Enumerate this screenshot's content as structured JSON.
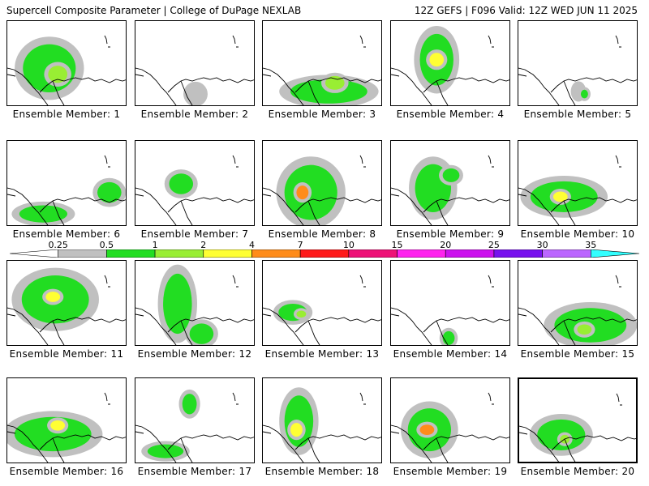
{
  "header": {
    "left": "Supercell Composite Parameter | College of DuPage NEXLAB",
    "right": "12Z GEFS | F096 Valid: 12Z WED JUN 11 2025"
  },
  "members": [
    {
      "label": "Ensemble Member: 1",
      "blobs": [
        [
          0.35,
          0.55,
          0.22,
          0.28,
          2
        ],
        [
          0.42,
          0.62,
          0.08,
          0.1,
          3
        ]
      ]
    },
    {
      "label": "Ensemble Member: 2",
      "blobs": [
        [
          0.5,
          0.85,
          0.07,
          0.1,
          1
        ]
      ]
    },
    {
      "label": "Ensemble Member: 3",
      "blobs": [
        [
          0.55,
          0.82,
          0.32,
          0.14,
          2
        ],
        [
          0.6,
          0.72,
          0.08,
          0.08,
          3
        ]
      ]
    },
    {
      "label": "Ensemble Member: 4",
      "blobs": [
        [
          0.38,
          0.45,
          0.14,
          0.3,
          2
        ],
        [
          0.38,
          0.45,
          0.06,
          0.08,
          4
        ]
      ]
    },
    {
      "label": "Ensemble Member: 5",
      "blobs": [
        [
          0.5,
          0.82,
          0.04,
          0.08,
          1
        ],
        [
          0.55,
          0.85,
          0.03,
          0.05,
          2
        ]
      ]
    },
    {
      "label": "Ensemble Member: 6",
      "blobs": [
        [
          0.3,
          0.85,
          0.2,
          0.1,
          2
        ],
        [
          0.85,
          0.6,
          0.1,
          0.12,
          2
        ]
      ]
    },
    {
      "label": "Ensemble Member: 7",
      "blobs": [
        [
          0.38,
          0.5,
          0.1,
          0.12,
          2
        ]
      ]
    },
    {
      "label": "Ensemble Member: 8",
      "blobs": [
        [
          0.4,
          0.6,
          0.22,
          0.32,
          2
        ],
        [
          0.33,
          0.6,
          0.05,
          0.08,
          5
        ]
      ]
    },
    {
      "label": "Ensemble Member: 9",
      "blobs": [
        [
          0.35,
          0.55,
          0.15,
          0.28,
          2
        ],
        [
          0.5,
          0.4,
          0.07,
          0.08,
          2
        ]
      ]
    },
    {
      "label": "Ensemble Member: 10",
      "blobs": [
        [
          0.38,
          0.65,
          0.28,
          0.18,
          2
        ],
        [
          0.35,
          0.65,
          0.06,
          0.06,
          4
        ]
      ]
    },
    {
      "label": "Ensemble Member: 11",
      "blobs": [
        [
          0.4,
          0.45,
          0.28,
          0.28,
          2
        ],
        [
          0.38,
          0.42,
          0.06,
          0.06,
          4
        ]
      ]
    },
    {
      "label": "Ensemble Member: 12",
      "blobs": [
        [
          0.35,
          0.5,
          0.12,
          0.35,
          2
        ],
        [
          0.55,
          0.85,
          0.1,
          0.12,
          2
        ]
      ]
    },
    {
      "label": "Ensemble Member: 13",
      "blobs": [
        [
          0.25,
          0.6,
          0.12,
          0.1,
          2
        ],
        [
          0.32,
          0.62,
          0.04,
          0.04,
          3
        ]
      ]
    },
    {
      "label": "Ensemble Member: 14",
      "blobs": [
        [
          0.48,
          0.9,
          0.05,
          0.08,
          2
        ]
      ]
    },
    {
      "label": "Ensemble Member: 15",
      "blobs": [
        [
          0.6,
          0.75,
          0.3,
          0.2,
          2
        ],
        [
          0.55,
          0.8,
          0.06,
          0.06,
          3
        ]
      ]
    },
    {
      "label": "Ensemble Member: 16",
      "blobs": [
        [
          0.38,
          0.65,
          0.32,
          0.2,
          2
        ],
        [
          0.42,
          0.55,
          0.06,
          0.06,
          4
        ]
      ]
    },
    {
      "label": "Ensemble Member: 17",
      "blobs": [
        [
          0.45,
          0.3,
          0.06,
          0.12,
          2
        ],
        [
          0.25,
          0.85,
          0.15,
          0.08,
          2
        ]
      ]
    },
    {
      "label": "Ensemble Member: 18",
      "blobs": [
        [
          0.3,
          0.5,
          0.12,
          0.3,
          2
        ],
        [
          0.28,
          0.6,
          0.05,
          0.08,
          4
        ]
      ]
    },
    {
      "label": "Ensemble Member: 19",
      "blobs": [
        [
          0.32,
          0.6,
          0.18,
          0.25,
          2
        ],
        [
          0.3,
          0.6,
          0.06,
          0.06,
          5
        ]
      ]
    },
    {
      "label": "Ensemble Member: 20",
      "blobs": [
        [
          0.35,
          0.65,
          0.2,
          0.18,
          2
        ],
        [
          0.38,
          0.7,
          0.04,
          0.05,
          3
        ]
      ]
    }
  ],
  "legend": {
    "ticks": [
      "0.25",
      "0.5",
      "1",
      "2",
      "4",
      "7",
      "10",
      "15",
      "20",
      "25",
      "30",
      "35"
    ],
    "colors": [
      "#ffffff",
      "#c0c0c0",
      "#22dd22",
      "#99ee33",
      "#ffff33",
      "#ff8c1a",
      "#ff1a1a",
      "#ee1177",
      "#ff22ee",
      "#cc11ee",
      "#7711ee",
      "#bb66ff",
      "#33ffff"
    ]
  }
}
